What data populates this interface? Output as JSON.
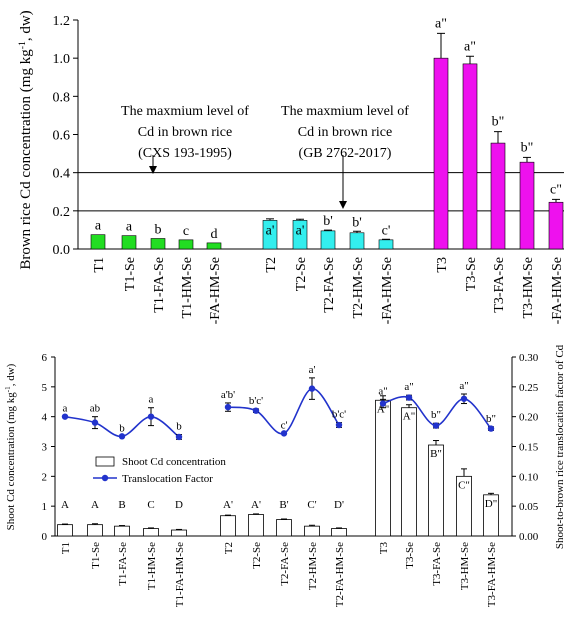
{
  "chart_data": [
    {
      "type": "bar",
      "ylabel": "Brown rice Cd concentration (mg kg-1, dw)",
      "ylim": [
        0,
        1.2
      ],
      "yticks": [
        "0.0",
        "0.2",
        "0.4",
        "0.6",
        "0.8",
        "1.0",
        "1.2"
      ],
      "categories": [
        "T1",
        "T1-Se",
        "T1-FA-Se",
        "T1-HM-Se",
        "-FA-HM-Se",
        "T2",
        "T2-Se",
        "T2-FA-Se",
        "T2-HM-Se",
        "-FA-HM-Se",
        "T3",
        "T3-Se",
        "T3-FA-Se",
        "T3-HM-Se",
        "-FA-HM-Se"
      ],
      "groups": [
        {
          "color": "#22dd22",
          "values": [
            0.075,
            0.07,
            0.055,
            0.048,
            0.032
          ],
          "errors": [
            0,
            0,
            0,
            0,
            0
          ],
          "letters": [
            "a",
            "a",
            "b",
            "c",
            "d"
          ]
        },
        {
          "color": "#33eeee",
          "values": [
            0.15,
            0.15,
            0.095,
            0.085,
            0.048
          ],
          "errors": [
            0.008,
            0.006,
            0.004,
            0.008,
            0.003
          ],
          "letters": [
            "a'",
            "a'",
            "b'",
            "b'",
            "c'"
          ]
        },
        {
          "color": "#ee11ee",
          "values": [
            1.0,
            0.97,
            0.555,
            0.455,
            0.245
          ],
          "errors": [
            0.13,
            0.04,
            0.06,
            0.025,
            0.015
          ],
          "letters": [
            "a\"",
            "a\"",
            "b\"",
            "b\"",
            "c\""
          ]
        }
      ],
      "reference_lines": [
        0.4,
        0.2
      ],
      "annotations": [
        {
          "lines": [
            "The maxmium level of",
            "Cd in brown rice",
            "(CXS 193-1995)"
          ]
        },
        {
          "lines": [
            "The maxmium level of",
            "Cd in brown rice",
            "(GB 2762-2017)"
          ]
        }
      ]
    },
    {
      "type": "bar+line",
      "ylabel_left": "Shoot Cd concentration (mg kg-1, dw)",
      "ylabel_right": "Shoot-to-brown rice translocation factor of Cd",
      "ylim_left": [
        0,
        6
      ],
      "ylim_right": [
        0,
        0.3
      ],
      "yticks_left": [
        "0",
        "1",
        "2",
        "3",
        "4",
        "5",
        "6"
      ],
      "yticks_right": [
        "0.00",
        "0.05",
        "0.10",
        "0.15",
        "0.20",
        "0.25",
        "0.30"
      ],
      "categories": [
        "T1",
        "T1-Se",
        "T1-FA-Se",
        "T1-HM-Se",
        "T1-FA-HM-Se",
        "T2",
        "T2-Se",
        "T2-FA-Se",
        "T2-HM-Se",
        "T2-FA-HM-Se",
        "T3",
        "T3-Se",
        "T3-FA-Se",
        "T3-HM-Se",
        "T3-FA-HM-Se"
      ],
      "series": [
        {
          "name": "Shoot Cd concentration",
          "values": [
            0.38,
            0.38,
            0.33,
            0.25,
            0.2,
            0.68,
            0.72,
            0.55,
            0.33,
            0.25,
            4.55,
            4.3,
            3.05,
            2.0,
            1.38
          ],
          "errors": [
            0.02,
            0.03,
            0.02,
            0.02,
            0.02,
            0.02,
            0.02,
            0.02,
            0.03,
            0.02,
            0.15,
            0.1,
            0.15,
            0.25,
            0.05
          ],
          "letters": [
            "A",
            "A",
            "B",
            "C",
            "D",
            "A'",
            "A'",
            "B'",
            "C'",
            "D'",
            "A\"",
            "A\"",
            "B\"",
            "C\"",
            "D\""
          ]
        },
        {
          "name": "Translocation Factor",
          "color": "#2233cc",
          "values": [
            0.2,
            0.19,
            0.167,
            0.2,
            0.166,
            0.216,
            0.21,
            0.172,
            0.247,
            0.186,
            0.222,
            0.232,
            0.185,
            0.23,
            0.18
          ],
          "errors": [
            0,
            0.01,
            0,
            0.015,
            0.004,
            0.007,
            0.003,
            0,
            0.018,
            0.004,
            0.007,
            0.004,
            0.004,
            0.008,
            0.003
          ],
          "letters": [
            "a",
            "ab",
            "b",
            "a",
            "b",
            "a'b'",
            "b'c'",
            "c'",
            "a'",
            "b'c'",
            "a\"",
            "a\"",
            "b\"",
            "a\"",
            "b\""
          ]
        }
      ],
      "legend": {
        "placement": "middle-left"
      }
    }
  ]
}
